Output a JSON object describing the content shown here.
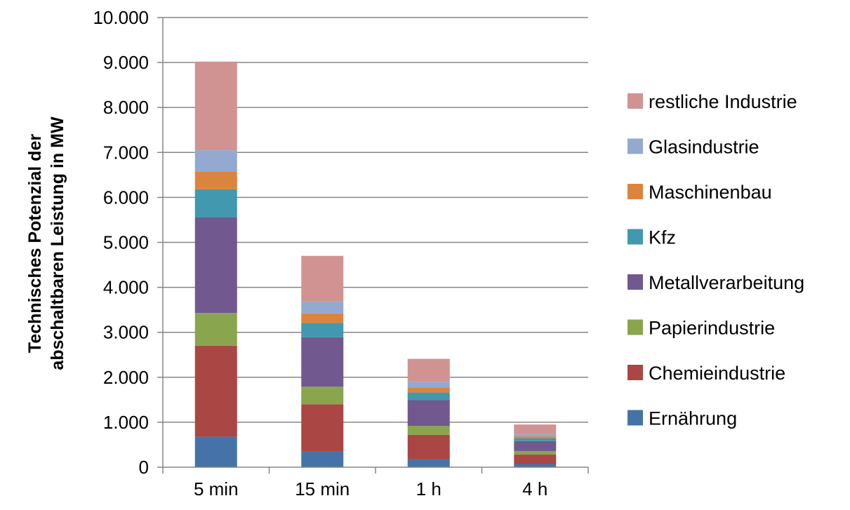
{
  "chart_data": {
    "type": "bar",
    "stacked": true,
    "categories": [
      "5 min",
      "15 min",
      "1 h",
      "4 h"
    ],
    "ylabel": "Technisches Potenzial der abschaltbaren Leistung in MW",
    "ylabel_lines": [
      "Technisches Potenzial der",
      "abschaltbaren Leistung in MW"
    ],
    "ylim": [
      0,
      10000
    ],
    "yticks": [
      0,
      1000,
      2000,
      3000,
      4000,
      5000,
      6000,
      7000,
      8000,
      9000,
      10000
    ],
    "ytick_labels": [
      "0",
      "1.000",
      "2.000",
      "3.000",
      "4.000",
      "5.000",
      "6.000",
      "7.000",
      "8.000",
      "9.000",
      "10.000"
    ],
    "grid": true,
    "legend_position": "right",
    "series": [
      {
        "name": "Ernährung",
        "color": "#4573A7",
        "values": [
          680,
          350,
          180,
          70
        ]
      },
      {
        "name": "Chemieindustrie",
        "color": "#AA4643",
        "values": [
          2020,
          1050,
          540,
          210
        ]
      },
      {
        "name": "Papierindustrie",
        "color": "#89A54E",
        "values": [
          730,
          390,
          200,
          80
        ]
      },
      {
        "name": "Metallverarbeitung",
        "color": "#71588F",
        "values": [
          2130,
          1100,
          570,
          220
        ]
      },
      {
        "name": "Kfz",
        "color": "#4198AF",
        "values": [
          620,
          320,
          170,
          60
        ]
      },
      {
        "name": "Maschinenbau",
        "color": "#DB843D",
        "values": [
          400,
          210,
          110,
          45
        ]
      },
      {
        "name": "Glasindustrie",
        "color": "#93A9CF",
        "values": [
          470,
          260,
          130,
          50
        ]
      },
      {
        "name": "restliche Industrie",
        "color": "#D19392",
        "values": [
          1970,
          1020,
          510,
          215
        ]
      }
    ]
  }
}
